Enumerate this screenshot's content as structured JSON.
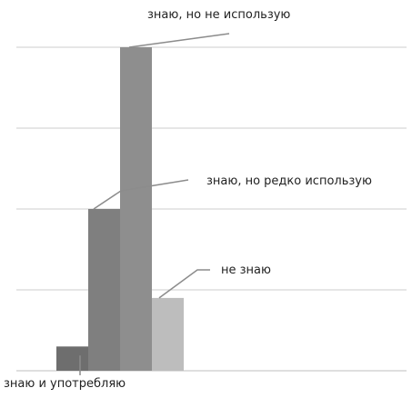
{
  "chart_data": {
    "type": "bar",
    "title": "",
    "xlabel": "",
    "ylabel": "",
    "ylim": [
      0,
      4
    ],
    "grid": true,
    "legend": "none",
    "categories": [
      "знаю и употребляю",
      "знаю, но редко использую",
      "знаю, но не использую",
      "не знаю"
    ],
    "values": [
      0.3,
      2.0,
      4.0,
      0.9
    ],
    "colors": [
      "#6e6e6e",
      "#7f7f7f",
      "#8e8e8e",
      "#bdbdbd"
    ],
    "gridline_color": "#cccccc",
    "axis_color": "#bfbfbf",
    "leader_color": "#8c8c8c"
  }
}
